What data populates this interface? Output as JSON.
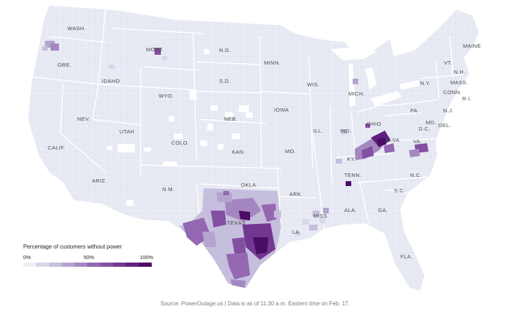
{
  "map": {
    "base_fill": "#e8ebf4",
    "border_color": "#ffffff",
    "county_line_color": "#c9cede",
    "state_labels": [
      {
        "id": "wash",
        "text": "WASH."
      },
      {
        "id": "ore",
        "text": "ORE."
      },
      {
        "id": "idaho",
        "text": "IDAHO"
      },
      {
        "id": "mont",
        "text": "MONT."
      },
      {
        "id": "nd",
        "text": "N.D."
      },
      {
        "id": "minn",
        "text": "MINN."
      },
      {
        "id": "wis",
        "text": "WIS."
      },
      {
        "id": "mich",
        "text": "MICH."
      },
      {
        "id": "sd",
        "text": "S.D."
      },
      {
        "id": "wyo",
        "text": "WYO."
      },
      {
        "id": "nev",
        "text": "NEV."
      },
      {
        "id": "utah",
        "text": "UTAH"
      },
      {
        "id": "colo",
        "text": "COLO."
      },
      {
        "id": "neb",
        "text": "NEB."
      },
      {
        "id": "iowa",
        "text": "IOWA"
      },
      {
        "id": "ill",
        "text": "ILL."
      },
      {
        "id": "ind",
        "text": "IND."
      },
      {
        "id": "ohio",
        "text": "OHIO"
      },
      {
        "id": "pa",
        "text": "PA."
      },
      {
        "id": "ny",
        "text": "N.Y."
      },
      {
        "id": "maine",
        "text": "MAINE"
      },
      {
        "id": "vt",
        "text": "VT."
      },
      {
        "id": "nh",
        "text": "N.H."
      },
      {
        "id": "mass",
        "text": "MASS."
      },
      {
        "id": "conn",
        "text": "CONN."
      },
      {
        "id": "ri",
        "text": "R.I."
      },
      {
        "id": "nj",
        "text": "N.J."
      },
      {
        "id": "md",
        "text": "MD."
      },
      {
        "id": "dc",
        "text": "D.C."
      },
      {
        "id": "del",
        "text": "DEL."
      },
      {
        "id": "wva",
        "text": "W.VA."
      },
      {
        "id": "va",
        "text": "VA."
      },
      {
        "id": "ky",
        "text": "KY."
      },
      {
        "id": "tenn",
        "text": "TENN."
      },
      {
        "id": "nc",
        "text": "N.C."
      },
      {
        "id": "sc",
        "text": "S.C."
      },
      {
        "id": "ga",
        "text": "GA."
      },
      {
        "id": "ala",
        "text": "ALA."
      },
      {
        "id": "miss",
        "text": "MISS."
      },
      {
        "id": "la",
        "text": "LA."
      },
      {
        "id": "ark",
        "text": "ARK."
      },
      {
        "id": "mo",
        "text": "MO."
      },
      {
        "id": "kan",
        "text": "KAN."
      },
      {
        "id": "okla",
        "text": "OKLA."
      },
      {
        "id": "texas",
        "text": "TEXAS"
      },
      {
        "id": "nm",
        "text": "N.M."
      },
      {
        "id": "ariz",
        "text": "ARIZ."
      },
      {
        "id": "calif",
        "text": "CALIF."
      },
      {
        "id": "fla",
        "text": "FLA."
      }
    ]
  },
  "legend": {
    "title": "Percentage of customers without power",
    "tick_min": "0%",
    "tick_mid": "50%",
    "tick_max": "100%",
    "colors": [
      "#eceff6",
      "#d8d7ea",
      "#c6bedd",
      "#b5a3d0",
      "#a486c0",
      "#9368b1",
      "#8350a1",
      "#733691",
      "#62207f",
      "#4a0d66"
    ]
  },
  "source": "Source: PowerOutage.us | Data is as of 11:30 a.m. Eastern time on Feb. 17."
}
